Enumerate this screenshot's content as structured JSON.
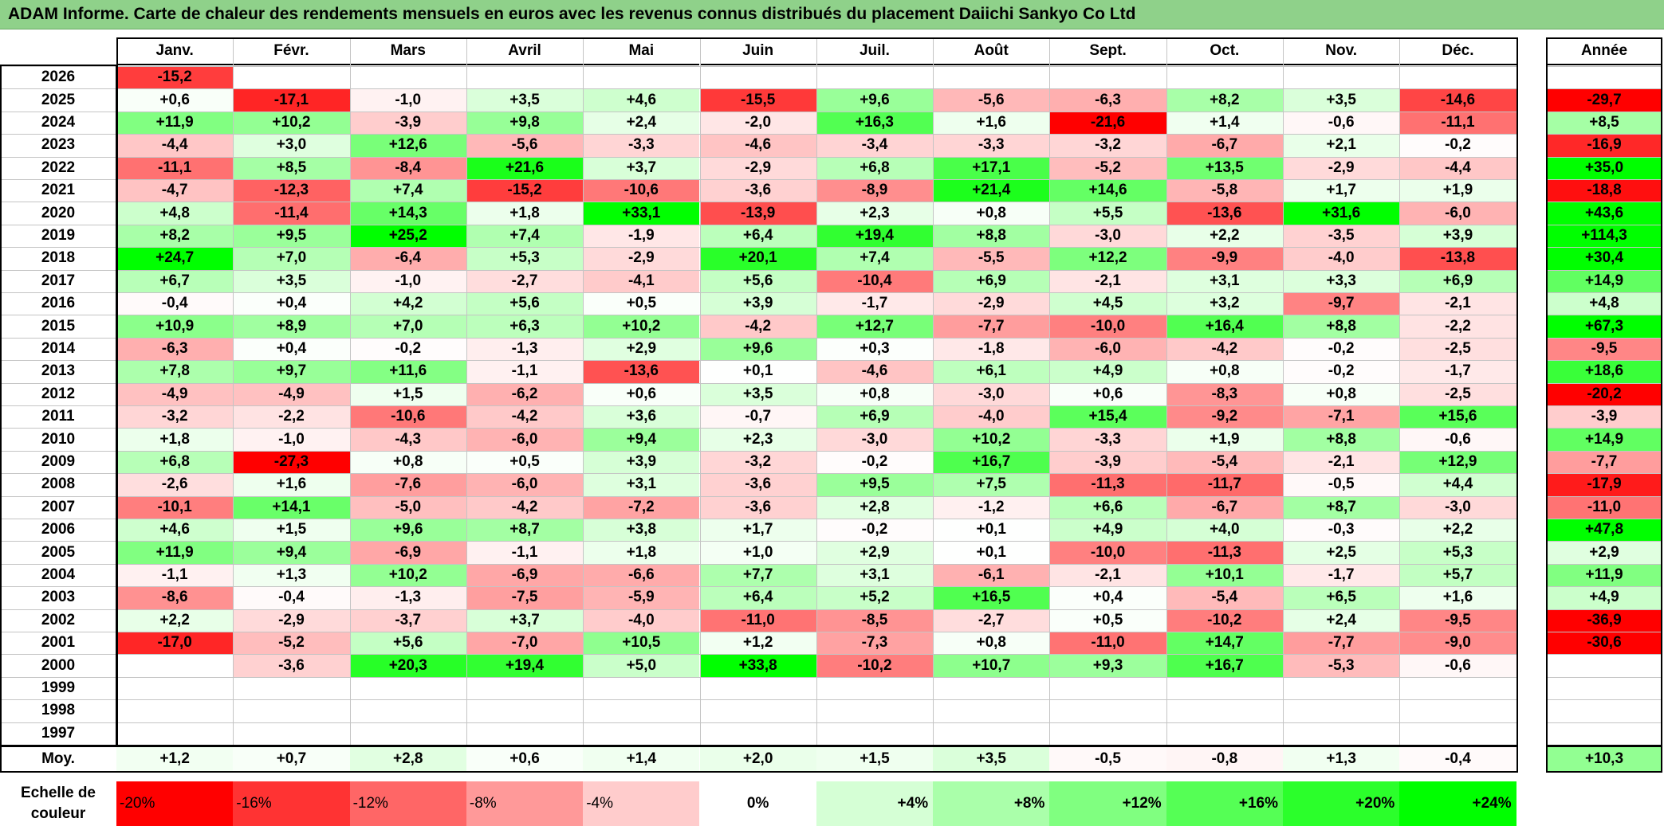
{
  "title": "ADAM Informe. Carte de chaleur des rendements mensuels en euros avec les revenus connus distribués du placement Daiichi Sankyo Co Ltd",
  "chart_data": {
    "type": "heatmap",
    "title": "ADAM Informe. Carte de chaleur des rendements mensuels en euros avec les revenus connus distribués du placement Daiichi Sankyo Co Ltd",
    "columns": [
      "Janv.",
      "Févr.",
      "Mars",
      "Avril",
      "Mai",
      "Juin",
      "Juil.",
      "Août",
      "Sept.",
      "Oct.",
      "Nov.",
      "Déc."
    ],
    "year_header": "Année",
    "years": [
      "2026",
      "2025",
      "2024",
      "2023",
      "2022",
      "2021",
      "2020",
      "2019",
      "2018",
      "2017",
      "2016",
      "2015",
      "2014",
      "2013",
      "2012",
      "2011",
      "2010",
      "2009",
      "2008",
      "2007",
      "2006",
      "2005",
      "2004",
      "2003",
      "2002",
      "2001",
      "2000",
      "1999",
      "1998",
      "1997"
    ],
    "values": [
      [
        "-15,2",
        "",
        "",
        "",
        "",
        "",
        "",
        "",
        "",
        "",
        "",
        ""
      ],
      [
        "+0,6",
        "-17,1",
        "-1,0",
        "+3,5",
        "+4,6",
        "-15,5",
        "+9,6",
        "-5,6",
        "-6,3",
        "+8,2",
        "+3,5",
        "-14,6"
      ],
      [
        "+11,9",
        "+10,2",
        "-3,9",
        "+9,8",
        "+2,4",
        "-2,0",
        "+16,3",
        "+1,6",
        "-21,6",
        "+1,4",
        "-0,6",
        "-11,1"
      ],
      [
        "-4,4",
        "+3,0",
        "+12,6",
        "-5,6",
        "-3,3",
        "-4,6",
        "-3,4",
        "-3,3",
        "-3,2",
        "-6,7",
        "+2,1",
        "-0,2"
      ],
      [
        "-11,1",
        "+8,5",
        "-8,4",
        "+21,6",
        "+3,7",
        "-2,9",
        "+6,8",
        "+17,1",
        "-5,2",
        "+13,5",
        "-2,9",
        "-4,4"
      ],
      [
        "-4,7",
        "-12,3",
        "+7,4",
        "-15,2",
        "-10,6",
        "-3,6",
        "-8,9",
        "+21,4",
        "+14,6",
        "-5,8",
        "+1,7",
        "+1,9"
      ],
      [
        "+4,8",
        "-11,4",
        "+14,3",
        "+1,8",
        "+33,1",
        "-13,9",
        "+2,3",
        "+0,8",
        "+5,5",
        "-13,6",
        "+31,6",
        "-6,0"
      ],
      [
        "+8,2",
        "+9,5",
        "+25,2",
        "+7,4",
        "-1,9",
        "+6,4",
        "+19,4",
        "+8,8",
        "-3,0",
        "+2,2",
        "-3,5",
        "+3,9"
      ],
      [
        "+24,7",
        "+7,0",
        "-6,4",
        "+5,3",
        "-2,9",
        "+20,1",
        "+7,4",
        "-5,5",
        "+12,2",
        "-9,9",
        "-4,0",
        "-13,8"
      ],
      [
        "+6,7",
        "+3,5",
        "-1,0",
        "-2,7",
        "-4,1",
        "+5,6",
        "-10,4",
        "+6,9",
        "-2,1",
        "+3,1",
        "+3,3",
        "+6,9"
      ],
      [
        "-0,4",
        "+0,4",
        "+4,2",
        "+5,6",
        "+0,5",
        "+3,9",
        "-1,7",
        "-2,9",
        "+4,5",
        "+3,2",
        "-9,7",
        "-2,1"
      ],
      [
        "+10,9",
        "+8,9",
        "+7,0",
        "+6,3",
        "+10,2",
        "-4,2",
        "+12,7",
        "-7,7",
        "-10,0",
        "+16,4",
        "+8,8",
        "-2,2"
      ],
      [
        "-6,3",
        "+0,4",
        "-0,2",
        "-1,3",
        "+2,9",
        "+9,6",
        "+0,3",
        "-1,8",
        "-6,0",
        "-4,2",
        "-0,2",
        "-2,5"
      ],
      [
        "+7,8",
        "+9,7",
        "+11,6",
        "-1,1",
        "-13,6",
        "+0,1",
        "-4,6",
        "+6,1",
        "+4,9",
        "+0,8",
        "-0,2",
        "-1,7"
      ],
      [
        "-4,9",
        "-4,9",
        "+1,5",
        "-6,2",
        "+0,6",
        "+3,5",
        "+0,8",
        "-3,0",
        "+0,6",
        "-8,3",
        "+0,8",
        "-2,5"
      ],
      [
        "-3,2",
        "-2,2",
        "-10,6",
        "-4,2",
        "+3,6",
        "-0,7",
        "+6,9",
        "-4,0",
        "+15,4",
        "-9,2",
        "-7,1",
        "+15,6"
      ],
      [
        "+1,8",
        "-1,0",
        "-4,3",
        "-6,0",
        "+9,4",
        "+2,3",
        "-3,0",
        "+10,2",
        "-3,3",
        "+1,9",
        "+8,8",
        "-0,6"
      ],
      [
        "+6,8",
        "-27,3",
        "+0,8",
        "+0,5",
        "+3,9",
        "-3,2",
        "-0,2",
        "+16,7",
        "-3,9",
        "-5,4",
        "-2,1",
        "+12,9"
      ],
      [
        "-2,6",
        "+1,6",
        "-7,6",
        "-6,0",
        "+3,1",
        "-3,6",
        "+9,5",
        "+7,5",
        "-11,3",
        "-11,7",
        "-0,5",
        "+4,4"
      ],
      [
        "-10,1",
        "+14,1",
        "-5,0",
        "-4,2",
        "-7,2",
        "-3,6",
        "+2,8",
        "-1,2",
        "+6,6",
        "-6,7",
        "+8,7",
        "-3,0"
      ],
      [
        "+4,6",
        "+1,5",
        "+9,6",
        "+8,7",
        "+3,8",
        "+1,7",
        "-0,2",
        "+0,1",
        "+4,9",
        "+4,0",
        "-0,3",
        "+2,2"
      ],
      [
        "+11,9",
        "+9,4",
        "-6,9",
        "-1,1",
        "+1,8",
        "+1,0",
        "+2,9",
        "+0,1",
        "-10,0",
        "-11,3",
        "+2,5",
        "+5,3"
      ],
      [
        "-1,1",
        "+1,3",
        "+10,2",
        "-6,9",
        "-6,6",
        "+7,7",
        "+3,1",
        "-6,1",
        "-2,1",
        "+10,1",
        "-1,7",
        "+5,7"
      ],
      [
        "-8,6",
        "-0,4",
        "-1,3",
        "-7,5",
        "-5,9",
        "+6,4",
        "+5,2",
        "+16,5",
        "+0,4",
        "-5,4",
        "+6,5",
        "+1,6"
      ],
      [
        "+2,2",
        "-2,9",
        "-3,7",
        "+3,7",
        "-4,0",
        "-11,0",
        "-8,5",
        "-2,7",
        "+0,5",
        "-10,2",
        "+2,4",
        "-9,5"
      ],
      [
        "-17,0",
        "-5,2",
        "+5,6",
        "-7,0",
        "+10,5",
        "+1,2",
        "-7,3",
        "+0,8",
        "-11,0",
        "+14,7",
        "-7,7",
        "-9,0"
      ],
      [
        "",
        "-3,6",
        "+20,3",
        "+19,4",
        "+5,0",
        "+33,8",
        "-10,2",
        "+10,7",
        "+9,3",
        "+16,7",
        "-5,3",
        "-0,6"
      ],
      [
        "",
        "",
        "",
        "",
        "",
        "",
        "",
        "",
        "",
        "",
        "",
        ""
      ],
      [
        "",
        "",
        "",
        "",
        "",
        "",
        "",
        "",
        "",
        "",
        "",
        ""
      ],
      [
        "",
        "",
        "",
        "",
        "",
        "",
        "",
        "",
        "",
        "",
        "",
        ""
      ]
    ],
    "annual": [
      "",
      "-29,7",
      "+8,5",
      "-16,9",
      "+35,0",
      "-18,8",
      "+43,6",
      "+114,3",
      "+30,4",
      "+14,9",
      "+4,8",
      "+67,3",
      "-9,5",
      "+18,6",
      "-20,2",
      "-3,9",
      "+14,9",
      "-7,7",
      "-17,9",
      "-11,0",
      "+47,8",
      "+2,9",
      "+11,9",
      "+4,9",
      "-36,9",
      "-30,6",
      "",
      "",
      "",
      ""
    ],
    "average_label": "Moy.",
    "averages": [
      "+1,2",
      "+0,7",
      "+2,8",
      "+0,6",
      "+1,4",
      "+2,0",
      "+1,5",
      "+3,5",
      "-0,5",
      "-0,8",
      "+1,3",
      "-0,4"
    ],
    "average_annual": "+10,3",
    "scale_label": "Echelle de couleur",
    "scale": [
      {
        "label": "-20%",
        "value": -20
      },
      {
        "label": "-16%",
        "value": -16
      },
      {
        "label": "-12%",
        "value": -12
      },
      {
        "label": "-8%",
        "value": -8
      },
      {
        "label": "-4%",
        "value": -4
      },
      {
        "label": "0%",
        "value": 0
      },
      {
        "label": "+4%",
        "value": 4
      },
      {
        "label": "+8%",
        "value": 8
      },
      {
        "label": "+12%",
        "value": 12
      },
      {
        "label": "+16%",
        "value": 16
      },
      {
        "label": "+20%",
        "value": 20
      },
      {
        "label": "+24%",
        "value": 24
      }
    ],
    "color_min": "#ff0000",
    "color_mid": "#ffffff",
    "color_max": "#00ff00"
  }
}
